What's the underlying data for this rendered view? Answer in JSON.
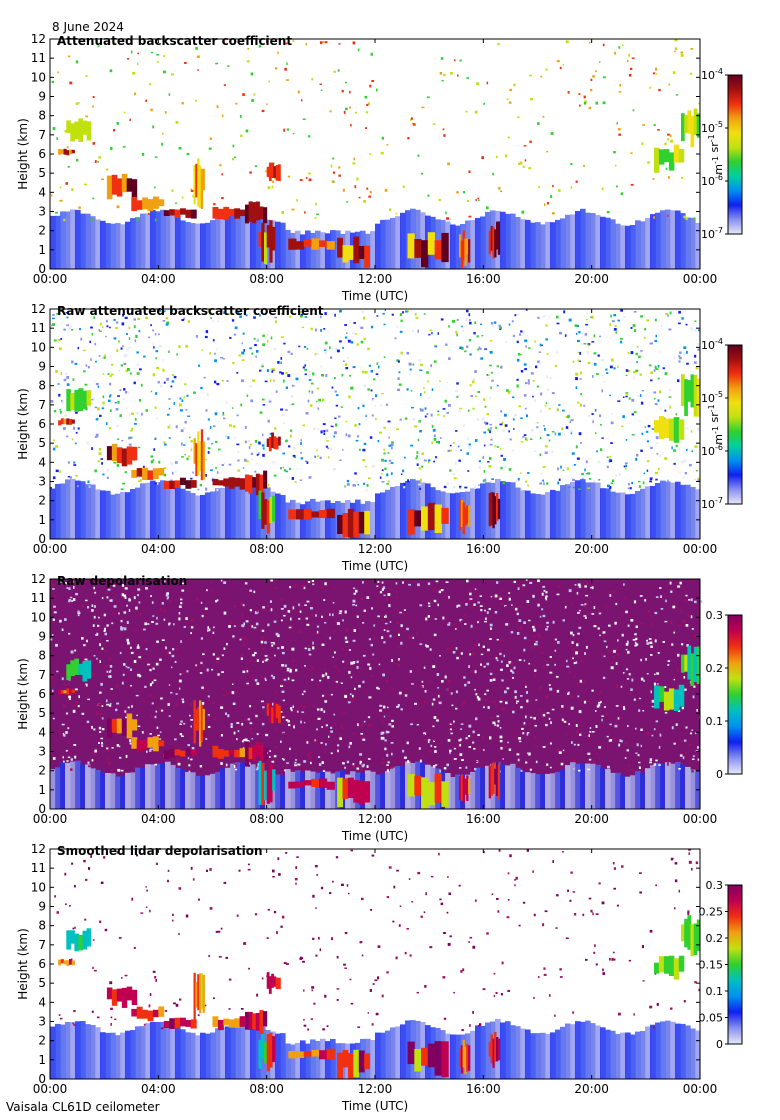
{
  "date": "8 June 2024",
  "footer": "Vaisala CL61D ceilometer",
  "panels": [
    {
      "title": "Attenuated backscatter coefficient",
      "ylabel": "Height (km)",
      "xlabel": "Time (UTC)",
      "colorbar": {
        "type": "log",
        "ticks": [
          "10-7",
          "10-6",
          "10-5",
          "10-4"
        ],
        "units": "m-1 sr-1",
        "palette": "backscatter"
      }
    },
    {
      "title": "Raw attenuated backscatter coefficient",
      "ylabel": "Height (km)",
      "xlabel": "Time (UTC)",
      "colorbar": {
        "type": "log",
        "ticks": [
          "10-7",
          "10-6",
          "10-5",
          "10-4"
        ],
        "units": "m-1 sr-1",
        "palette": "backscatter"
      }
    },
    {
      "title": "Raw depolarisation",
      "ylabel": "Height (km)",
      "xlabel": "Time (UTC)",
      "colorbar": {
        "type": "linear",
        "ticks": [
          "0",
          "0.1",
          "0.2",
          "0.3"
        ],
        "units": "",
        "palette": "depol"
      }
    },
    {
      "title": "Smoothed lidar depolarisation",
      "ylabel": "Height (km)",
      "xlabel": "Time (UTC)",
      "colorbar": {
        "type": "linear",
        "ticks": [
          "0",
          "0.05",
          "0.1",
          "0.15",
          "0.2",
          "0.25",
          "0.3"
        ],
        "units": "",
        "palette": "depol"
      }
    }
  ],
  "chart_data": [
    {
      "type": "heatmap",
      "title": "Attenuated backscatter coefficient",
      "xlabel": "Time (UTC)",
      "ylabel": "Height (km)",
      "x_ticks": [
        "00:00",
        "04:00",
        "08:00",
        "12:00",
        "16:00",
        "20:00",
        "00:00"
      ],
      "xlim": [
        0,
        24
      ],
      "y_ticks": [
        "0",
        "1",
        "2",
        "3",
        "4",
        "5",
        "6",
        "7",
        "8",
        "9",
        "10",
        "11",
        "12"
      ],
      "ylim": [
        0,
        12
      ],
      "colorbar_label": "m-1 sr-1",
      "colorbar_ticks": [
        "10-7",
        "10-6",
        "10-5",
        "10-4"
      ]
    },
    {
      "type": "heatmap",
      "title": "Raw attenuated backscatter coefficient",
      "xlabel": "Time (UTC)",
      "ylabel": "Height (km)",
      "x_ticks": [
        "00:00",
        "04:00",
        "08:00",
        "12:00",
        "16:00",
        "20:00",
        "00:00"
      ],
      "xlim": [
        0,
        24
      ],
      "y_ticks": [
        "0",
        "1",
        "2",
        "3",
        "4",
        "5",
        "6",
        "7",
        "8",
        "9",
        "10",
        "11",
        "12"
      ],
      "ylim": [
        0,
        12
      ],
      "colorbar_label": "m-1 sr-1",
      "colorbar_ticks": [
        "10-7",
        "10-6",
        "10-5",
        "10-4"
      ]
    },
    {
      "type": "heatmap",
      "title": "Raw depolarisation",
      "xlabel": "Time (UTC)",
      "ylabel": "Height (km)",
      "x_ticks": [
        "00:00",
        "04:00",
        "08:00",
        "12:00",
        "16:00",
        "20:00",
        "00:00"
      ],
      "xlim": [
        0,
        24
      ],
      "y_ticks": [
        "0",
        "1",
        "2",
        "3",
        "4",
        "5",
        "6",
        "7",
        "8",
        "9",
        "10",
        "11",
        "12"
      ],
      "ylim": [
        0,
        12
      ],
      "colorbar_ticks": [
        "0",
        "0.1",
        "0.2",
        "0.3"
      ]
    },
    {
      "type": "heatmap",
      "title": "Smoothed lidar depolarisation",
      "xlabel": "Time (UTC)",
      "ylabel": "Height (km)",
      "x_ticks": [
        "00:00",
        "04:00",
        "08:00",
        "12:00",
        "16:00",
        "20:00",
        "00:00"
      ],
      "xlim": [
        0,
        24
      ],
      "y_ticks": [
        "0",
        "1",
        "2",
        "3",
        "4",
        "5",
        "6",
        "7",
        "8",
        "9",
        "10",
        "11",
        "12"
      ],
      "ylim": [
        0,
        12
      ],
      "colorbar_ticks": [
        "0",
        "0.05",
        "0.1",
        "0.15",
        "0.2",
        "0.25",
        "0.3"
      ]
    }
  ]
}
